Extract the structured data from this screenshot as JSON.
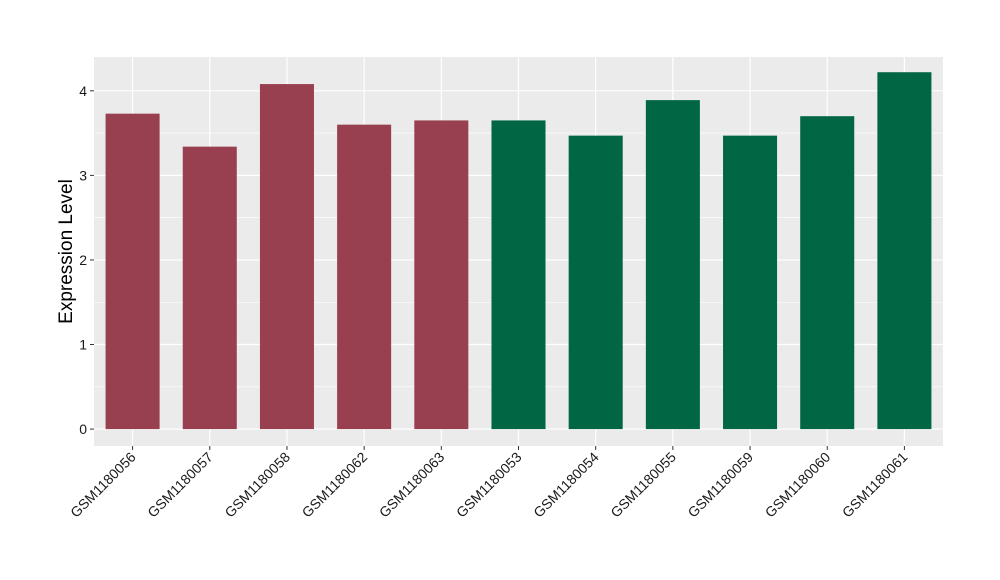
{
  "chart_data": {
    "type": "bar",
    "title": "",
    "xlabel": "",
    "ylabel": "Expression Level",
    "ylim": [
      -0.2,
      4.4
    ],
    "yticks": [
      0,
      1,
      2,
      3,
      4
    ],
    "grid": true,
    "legend": "none",
    "background_color": "#ebebeb",
    "grid_color": "#ffffff",
    "categories": [
      "GSM1180056",
      "GSM1180057",
      "GSM1180058",
      "GSM1180062",
      "GSM1180063",
      "GSM1180053",
      "GSM1180054",
      "GSM1180055",
      "GSM1180059",
      "GSM1180060",
      "GSM1180061"
    ],
    "values": [
      3.73,
      3.34,
      4.08,
      3.6,
      3.65,
      3.65,
      3.47,
      3.89,
      3.47,
      3.7,
      4.22
    ],
    "bar_colors": [
      "#98404f",
      "#98404f",
      "#98404f",
      "#98404f",
      "#98404f",
      "#006644",
      "#006644",
      "#006644",
      "#006644",
      "#006644",
      "#006644"
    ]
  }
}
